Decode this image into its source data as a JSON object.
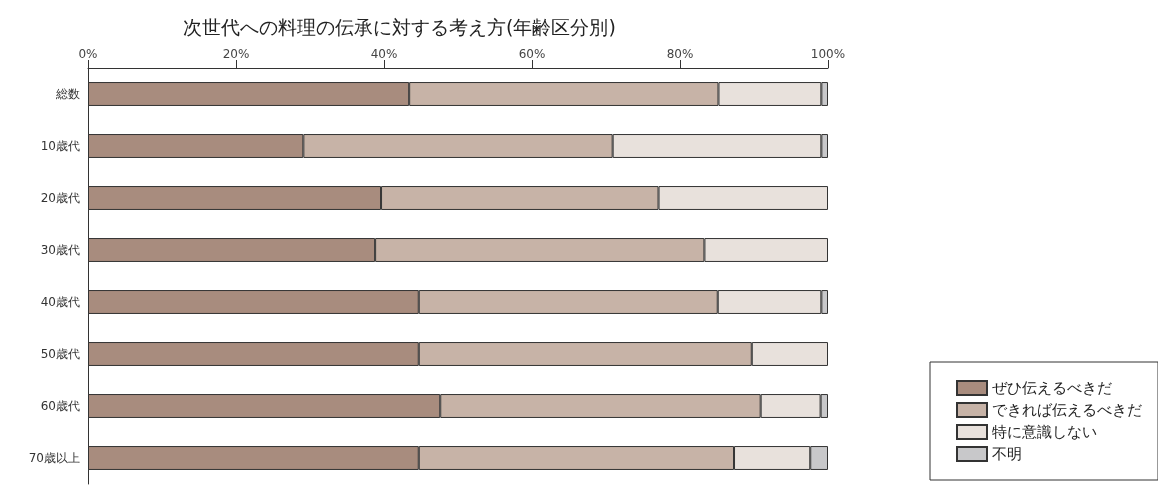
{
  "chart_data": {
    "type": "bar",
    "orientation": "horizontal",
    "stacked": true,
    "title": "次世代への料理の伝承に対する考え方(年齢区分別)",
    "categories": [
      "総数",
      "10歳代",
      "20歳代",
      "30歳代",
      "40歳代",
      "50歳代",
      "60歳代",
      "70歳以上"
    ],
    "series": [
      {
        "name": "ぜひ伝えるべきだ",
        "color": "#a88c7e",
        "values": [
          43.4,
          29.1,
          39.6,
          38.8,
          44.7,
          44.7,
          47.6,
          44.7
        ]
      },
      {
        "name": "できれば伝えるべきだ",
        "color": "#c7b3a7",
        "values": [
          41.8,
          41.8,
          37.5,
          44.5,
          40.4,
          45.0,
          43.3,
          42.6
        ]
      },
      {
        "name": "特に意識しない",
        "color": "#e8e1dc",
        "values": [
          13.9,
          28.2,
          22.9,
          16.7,
          14.0,
          10.3,
          8.1,
          10.3
        ]
      },
      {
        "name": "不明",
        "color": "#c8c8ca",
        "values": [
          0.9,
          0.9,
          0,
          0,
          0.9,
          0,
          1.0,
          2.4
        ]
      }
    ],
    "xlim": [
      0,
      100
    ],
    "xticks": [
      {
        "value": 0,
        "label": "0%"
      },
      {
        "value": 20,
        "label": "20%"
      },
      {
        "value": 40,
        "label": "40%"
      },
      {
        "value": 60,
        "label": "60%"
      },
      {
        "value": 80,
        "label": "80%"
      },
      {
        "value": 100,
        "label": "100%"
      }
    ],
    "grid": false,
    "legend": "bottom right"
  }
}
